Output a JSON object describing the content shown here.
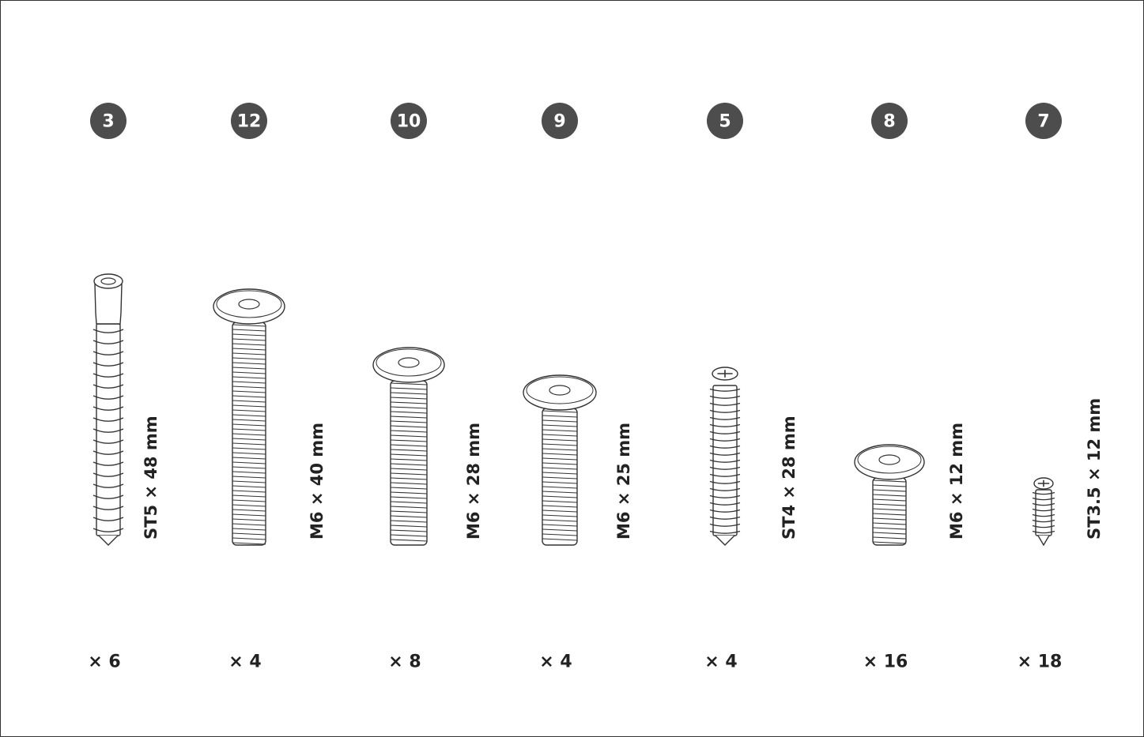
{
  "items": [
    {
      "label": "3",
      "size": "ST5 × 48 mm",
      "quantity": "× 6"
    },
    {
      "label": "12",
      "size": "M6 × 40 mm",
      "quantity": "× 4"
    },
    {
      "label": "10",
      "size": "M6 × 28 mm",
      "quantity": "× 8"
    },
    {
      "label": "9",
      "size": "M6 × 25 mm",
      "quantity": "× 4"
    },
    {
      "label": "5",
      "size": "ST4 × 28 mm",
      "quantity": "× 4"
    },
    {
      "label": "8",
      "size": "M6 × 12 mm",
      "quantity": "× 16"
    },
    {
      "label": "7",
      "size": "ST3.5 × 12 mm",
      "quantity": "× 18"
    }
  ]
}
